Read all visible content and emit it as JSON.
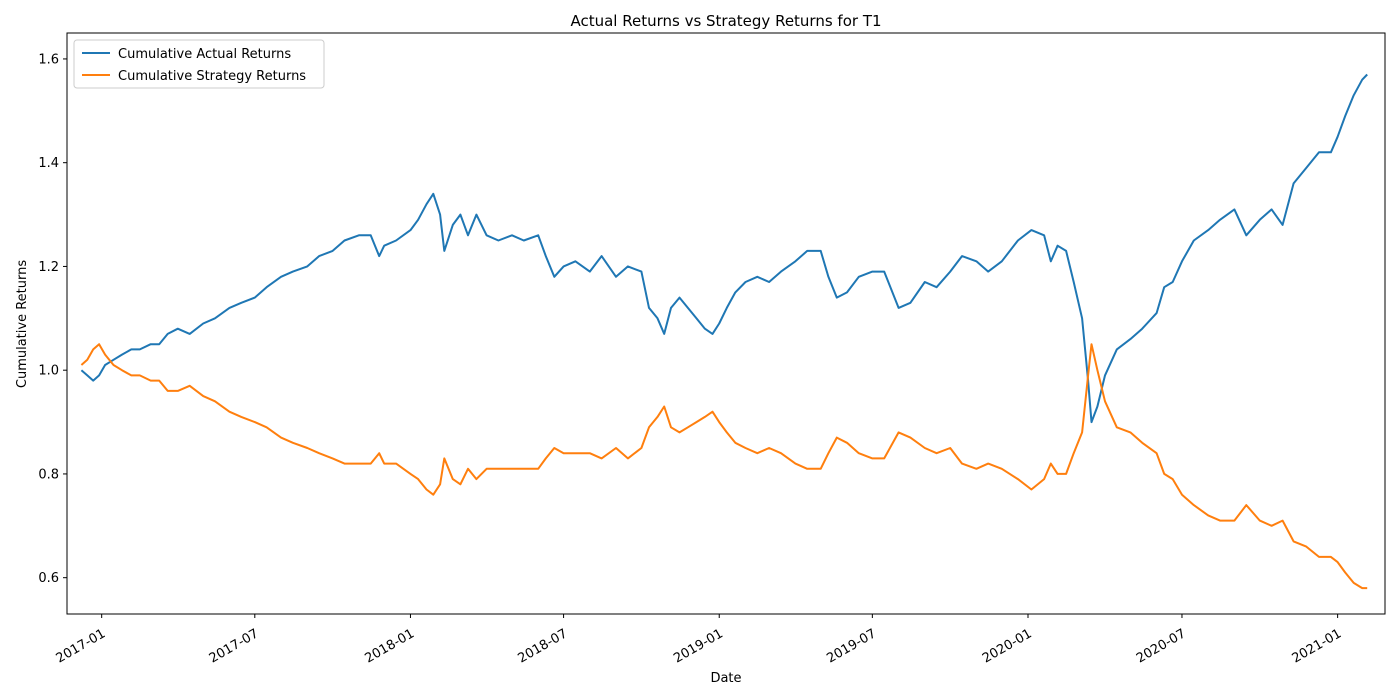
{
  "chart_data": {
    "type": "line",
    "title": "Actual Returns vs Strategy Returns for T1",
    "xlabel": "Date",
    "ylabel": "Cumulative Returns",
    "xlim": [
      "2016-11-21",
      "2021-02-26"
    ],
    "ylim": [
      0.53,
      1.65
    ],
    "x_ticks": [
      "2017-01-01",
      "2017-07-01",
      "2018-01-01",
      "2018-07-01",
      "2019-01-01",
      "2019-07-01",
      "2020-01-01",
      "2020-07-01",
      "2021-01-01"
    ],
    "x_tick_labels": [
      "2017-01",
      "2017-07",
      "2018-01",
      "2018-07",
      "2019-01",
      "2019-07",
      "2020-01",
      "2020-07",
      "2021-01"
    ],
    "y_ticks": [
      0.6,
      0.8,
      1.0,
      1.2,
      1.4,
      1.6
    ],
    "y_tick_labels": [
      "0.6",
      "0.8",
      "1.0",
      "1.2",
      "1.4",
      "1.6"
    ],
    "grid": false,
    "legend": "top-left",
    "series": [
      {
        "name": "Cumulative Actual Returns",
        "color": "#1f77b4",
        "points": [
          [
            "2016-12-08",
            1.0
          ],
          [
            "2016-12-15",
            0.99
          ],
          [
            "2016-12-22",
            0.98
          ],
          [
            "2016-12-29",
            0.99
          ],
          [
            "2017-01-05",
            1.01
          ],
          [
            "2017-01-15",
            1.02
          ],
          [
            "2017-01-25",
            1.03
          ],
          [
            "2017-02-05",
            1.04
          ],
          [
            "2017-02-15",
            1.04
          ],
          [
            "2017-02-28",
            1.05
          ],
          [
            "2017-03-10",
            1.05
          ],
          [
            "2017-03-20",
            1.07
          ],
          [
            "2017-04-01",
            1.08
          ],
          [
            "2017-04-15",
            1.07
          ],
          [
            "2017-05-01",
            1.09
          ],
          [
            "2017-05-15",
            1.1
          ],
          [
            "2017-06-01",
            1.12
          ],
          [
            "2017-06-15",
            1.13
          ],
          [
            "2017-07-01",
            1.14
          ],
          [
            "2017-07-15",
            1.16
          ],
          [
            "2017-08-01",
            1.18
          ],
          [
            "2017-08-15",
            1.19
          ],
          [
            "2017-09-01",
            1.2
          ],
          [
            "2017-09-15",
            1.22
          ],
          [
            "2017-10-01",
            1.23
          ],
          [
            "2017-10-15",
            1.25
          ],
          [
            "2017-11-01",
            1.26
          ],
          [
            "2017-11-15",
            1.26
          ],
          [
            "2017-11-25",
            1.22
          ],
          [
            "2017-12-01",
            1.24
          ],
          [
            "2017-12-15",
            1.25
          ],
          [
            "2018-01-01",
            1.27
          ],
          [
            "2018-01-10",
            1.29
          ],
          [
            "2018-01-20",
            1.32
          ],
          [
            "2018-01-28",
            1.34
          ],
          [
            "2018-02-05",
            1.3
          ],
          [
            "2018-02-10",
            1.23
          ],
          [
            "2018-02-20",
            1.28
          ],
          [
            "2018-03-01",
            1.3
          ],
          [
            "2018-03-10",
            1.26
          ],
          [
            "2018-03-20",
            1.3
          ],
          [
            "2018-04-01",
            1.26
          ],
          [
            "2018-04-15",
            1.25
          ],
          [
            "2018-05-01",
            1.26
          ],
          [
            "2018-05-15",
            1.25
          ],
          [
            "2018-06-01",
            1.26
          ],
          [
            "2018-06-10",
            1.22
          ],
          [
            "2018-06-20",
            1.18
          ],
          [
            "2018-07-01",
            1.2
          ],
          [
            "2018-07-15",
            1.21
          ],
          [
            "2018-08-01",
            1.19
          ],
          [
            "2018-08-15",
            1.22
          ],
          [
            "2018-09-01",
            1.18
          ],
          [
            "2018-09-15",
            1.2
          ],
          [
            "2018-10-01",
            1.19
          ],
          [
            "2018-10-10",
            1.12
          ],
          [
            "2018-10-20",
            1.1
          ],
          [
            "2018-10-28",
            1.07
          ],
          [
            "2018-11-05",
            1.12
          ],
          [
            "2018-11-15",
            1.14
          ],
          [
            "2018-11-25",
            1.12
          ],
          [
            "2018-12-05",
            1.1
          ],
          [
            "2018-12-15",
            1.08
          ],
          [
            "2018-12-24",
            1.07
          ],
          [
            "2019-01-01",
            1.09
          ],
          [
            "2019-01-10",
            1.12
          ],
          [
            "2019-01-20",
            1.15
          ],
          [
            "2019-02-01",
            1.17
          ],
          [
            "2019-02-15",
            1.18
          ],
          [
            "2019-03-01",
            1.17
          ],
          [
            "2019-03-15",
            1.19
          ],
          [
            "2019-04-01",
            1.21
          ],
          [
            "2019-04-15",
            1.23
          ],
          [
            "2019-05-01",
            1.23
          ],
          [
            "2019-05-10",
            1.18
          ],
          [
            "2019-05-20",
            1.14
          ],
          [
            "2019-06-01",
            1.15
          ],
          [
            "2019-06-15",
            1.18
          ],
          [
            "2019-07-01",
            1.19
          ],
          [
            "2019-07-15",
            1.19
          ],
          [
            "2019-08-01",
            1.12
          ],
          [
            "2019-08-15",
            1.13
          ],
          [
            "2019-09-01",
            1.17
          ],
          [
            "2019-09-15",
            1.16
          ],
          [
            "2019-10-01",
            1.19
          ],
          [
            "2019-10-15",
            1.22
          ],
          [
            "2019-11-01",
            1.21
          ],
          [
            "2019-11-15",
            1.19
          ],
          [
            "2019-12-01",
            1.21
          ],
          [
            "2019-12-20",
            1.25
          ],
          [
            "2020-01-05",
            1.27
          ],
          [
            "2020-01-20",
            1.26
          ],
          [
            "2020-01-28",
            1.21
          ],
          [
            "2020-02-05",
            1.24
          ],
          [
            "2020-02-15",
            1.23
          ],
          [
            "2020-02-24",
            1.17
          ],
          [
            "2020-03-05",
            1.1
          ],
          [
            "2020-03-12",
            0.98
          ],
          [
            "2020-03-16",
            0.9
          ],
          [
            "2020-03-23",
            0.93
          ],
          [
            "2020-04-01",
            0.99
          ],
          [
            "2020-04-15",
            1.04
          ],
          [
            "2020-05-01",
            1.06
          ],
          [
            "2020-05-15",
            1.08
          ],
          [
            "2020-06-01",
            1.11
          ],
          [
            "2020-06-10",
            1.16
          ],
          [
            "2020-06-20",
            1.17
          ],
          [
            "2020-07-01",
            1.21
          ],
          [
            "2020-07-15",
            1.25
          ],
          [
            "2020-08-01",
            1.27
          ],
          [
            "2020-08-15",
            1.29
          ],
          [
            "2020-09-01",
            1.31
          ],
          [
            "2020-09-15",
            1.26
          ],
          [
            "2020-10-01",
            1.29
          ],
          [
            "2020-10-15",
            1.31
          ],
          [
            "2020-10-28",
            1.28
          ],
          [
            "2020-11-10",
            1.36
          ],
          [
            "2020-11-25",
            1.39
          ],
          [
            "2020-12-10",
            1.42
          ],
          [
            "2020-12-24",
            1.42
          ],
          [
            "2021-01-01",
            1.45
          ],
          [
            "2021-01-10",
            1.49
          ],
          [
            "2021-01-20",
            1.53
          ],
          [
            "2021-01-30",
            1.56
          ],
          [
            "2021-02-05",
            1.57
          ]
        ]
      },
      {
        "name": "Cumulative Strategy Returns",
        "color": "#ff7f0e",
        "points": [
          [
            "2016-12-08",
            1.01
          ],
          [
            "2016-12-15",
            1.02
          ],
          [
            "2016-12-22",
            1.04
          ],
          [
            "2016-12-29",
            1.05
          ],
          [
            "2017-01-05",
            1.03
          ],
          [
            "2017-01-15",
            1.01
          ],
          [
            "2017-01-25",
            1.0
          ],
          [
            "2017-02-05",
            0.99
          ],
          [
            "2017-02-15",
            0.99
          ],
          [
            "2017-02-28",
            0.98
          ],
          [
            "2017-03-10",
            0.98
          ],
          [
            "2017-03-20",
            0.96
          ],
          [
            "2017-04-01",
            0.96
          ],
          [
            "2017-04-15",
            0.97
          ],
          [
            "2017-05-01",
            0.95
          ],
          [
            "2017-05-15",
            0.94
          ],
          [
            "2017-06-01",
            0.92
          ],
          [
            "2017-06-15",
            0.91
          ],
          [
            "2017-07-01",
            0.9
          ],
          [
            "2017-07-15",
            0.89
          ],
          [
            "2017-08-01",
            0.87
          ],
          [
            "2017-08-15",
            0.86
          ],
          [
            "2017-09-01",
            0.85
          ],
          [
            "2017-09-15",
            0.84
          ],
          [
            "2017-10-01",
            0.83
          ],
          [
            "2017-10-15",
            0.82
          ],
          [
            "2017-11-01",
            0.82
          ],
          [
            "2017-11-15",
            0.82
          ],
          [
            "2017-11-25",
            0.84
          ],
          [
            "2017-12-01",
            0.82
          ],
          [
            "2017-12-15",
            0.82
          ],
          [
            "2018-01-01",
            0.8
          ],
          [
            "2018-01-10",
            0.79
          ],
          [
            "2018-01-20",
            0.77
          ],
          [
            "2018-01-28",
            0.76
          ],
          [
            "2018-02-05",
            0.78
          ],
          [
            "2018-02-10",
            0.83
          ],
          [
            "2018-02-20",
            0.79
          ],
          [
            "2018-03-01",
            0.78
          ],
          [
            "2018-03-10",
            0.81
          ],
          [
            "2018-03-20",
            0.79
          ],
          [
            "2018-04-01",
            0.81
          ],
          [
            "2018-04-15",
            0.81
          ],
          [
            "2018-05-01",
            0.81
          ],
          [
            "2018-05-15",
            0.81
          ],
          [
            "2018-06-01",
            0.81
          ],
          [
            "2018-06-10",
            0.83
          ],
          [
            "2018-06-20",
            0.85
          ],
          [
            "2018-07-01",
            0.84
          ],
          [
            "2018-07-15",
            0.84
          ],
          [
            "2018-08-01",
            0.84
          ],
          [
            "2018-08-15",
            0.83
          ],
          [
            "2018-09-01",
            0.85
          ],
          [
            "2018-09-15",
            0.83
          ],
          [
            "2018-10-01",
            0.85
          ],
          [
            "2018-10-10",
            0.89
          ],
          [
            "2018-10-20",
            0.91
          ],
          [
            "2018-10-28",
            0.93
          ],
          [
            "2018-11-05",
            0.89
          ],
          [
            "2018-11-15",
            0.88
          ],
          [
            "2018-11-25",
            0.89
          ],
          [
            "2018-12-05",
            0.9
          ],
          [
            "2018-12-15",
            0.91
          ],
          [
            "2018-12-24",
            0.92
          ],
          [
            "2019-01-01",
            0.9
          ],
          [
            "2019-01-10",
            0.88
          ],
          [
            "2019-01-20",
            0.86
          ],
          [
            "2019-02-01",
            0.85
          ],
          [
            "2019-02-15",
            0.84
          ],
          [
            "2019-03-01",
            0.85
          ],
          [
            "2019-03-15",
            0.84
          ],
          [
            "2019-04-01",
            0.82
          ],
          [
            "2019-04-15",
            0.81
          ],
          [
            "2019-05-01",
            0.81
          ],
          [
            "2019-05-10",
            0.84
          ],
          [
            "2019-05-20",
            0.87
          ],
          [
            "2019-06-01",
            0.86
          ],
          [
            "2019-06-15",
            0.84
          ],
          [
            "2019-07-01",
            0.83
          ],
          [
            "2019-07-15",
            0.83
          ],
          [
            "2019-08-01",
            0.88
          ],
          [
            "2019-08-15",
            0.87
          ],
          [
            "2019-09-01",
            0.85
          ],
          [
            "2019-09-15",
            0.84
          ],
          [
            "2019-10-01",
            0.85
          ],
          [
            "2019-10-15",
            0.82
          ],
          [
            "2019-11-01",
            0.81
          ],
          [
            "2019-11-15",
            0.82
          ],
          [
            "2019-12-01",
            0.81
          ],
          [
            "2019-12-20",
            0.79
          ],
          [
            "2020-01-05",
            0.77
          ],
          [
            "2020-01-20",
            0.79
          ],
          [
            "2020-01-28",
            0.82
          ],
          [
            "2020-02-05",
            0.8
          ],
          [
            "2020-02-15",
            0.8
          ],
          [
            "2020-02-24",
            0.84
          ],
          [
            "2020-03-05",
            0.88
          ],
          [
            "2020-03-12",
            0.99
          ],
          [
            "2020-03-16",
            1.05
          ],
          [
            "2020-03-23",
            1.0
          ],
          [
            "2020-04-01",
            0.94
          ],
          [
            "2020-04-15",
            0.89
          ],
          [
            "2020-05-01",
            0.88
          ],
          [
            "2020-05-15",
            0.86
          ],
          [
            "2020-06-01",
            0.84
          ],
          [
            "2020-06-10",
            0.8
          ],
          [
            "2020-06-20",
            0.79
          ],
          [
            "2020-07-01",
            0.76
          ],
          [
            "2020-07-15",
            0.74
          ],
          [
            "2020-08-01",
            0.72
          ],
          [
            "2020-08-15",
            0.71
          ],
          [
            "2020-09-01",
            0.71
          ],
          [
            "2020-09-15",
            0.74
          ],
          [
            "2020-10-01",
            0.71
          ],
          [
            "2020-10-15",
            0.7
          ],
          [
            "2020-10-28",
            0.71
          ],
          [
            "2020-11-10",
            0.67
          ],
          [
            "2020-11-25",
            0.66
          ],
          [
            "2020-12-10",
            0.64
          ],
          [
            "2020-12-24",
            0.64
          ],
          [
            "2021-01-01",
            0.63
          ],
          [
            "2021-01-10",
            0.61
          ],
          [
            "2021-01-20",
            0.59
          ],
          [
            "2021-01-30",
            0.58
          ],
          [
            "2021-02-05",
            0.58
          ]
        ]
      }
    ]
  }
}
